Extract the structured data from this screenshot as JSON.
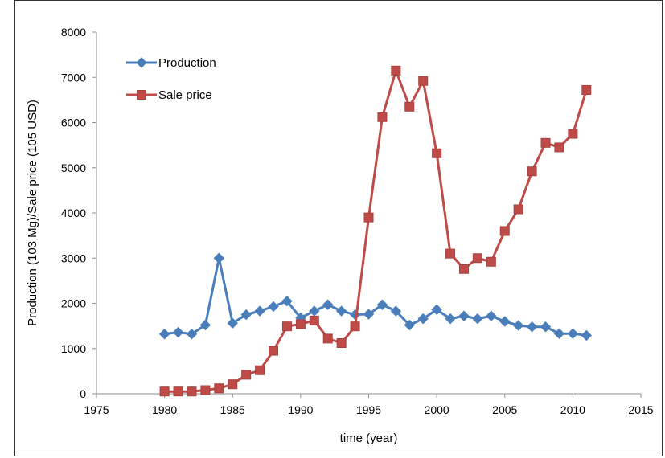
{
  "chart_data": {
    "type": "line",
    "xlabel": "time (year)",
    "ylabel": "Production (103 Mg)/Sale price (105 USD)",
    "xlim": [
      1975,
      2015
    ],
    "ylim": [
      0,
      8000
    ],
    "x_ticks": [
      1975,
      1980,
      1985,
      1990,
      1995,
      2000,
      2005,
      2010,
      2015
    ],
    "y_ticks": [
      0,
      1000,
      2000,
      3000,
      4000,
      5000,
      6000,
      7000,
      8000
    ],
    "legend_position": "top-left",
    "grid": false,
    "x": [
      1980,
      1981,
      1982,
      1983,
      1984,
      1985,
      1986,
      1987,
      1988,
      1989,
      1990,
      1991,
      1992,
      1993,
      1994,
      1995,
      1996,
      1997,
      1998,
      1999,
      2000,
      2001,
      2002,
      2003,
      2004,
      2005,
      2006,
      2007,
      2008,
      2009,
      2010,
      2011
    ],
    "series": [
      {
        "name": "Production",
        "color": "#4a7ebb",
        "marker": "diamond",
        "values": [
          1320,
          1360,
          1320,
          1520,
          3000,
          1560,
          1750,
          1830,
          1930,
          2050,
          1680,
          1830,
          1970,
          1830,
          1750,
          1760,
          1970,
          1830,
          1520,
          1660,
          1860,
          1660,
          1720,
          1660,
          1720,
          1600,
          1510,
          1480,
          1480,
          1330,
          1330,
          1290
        ]
      },
      {
        "name": "Sale price",
        "color": "#be4b48",
        "marker": "square",
        "values": [
          50,
          50,
          50,
          80,
          120,
          210,
          420,
          520,
          950,
          1490,
          1540,
          1620,
          1220,
          1120,
          1490,
          3900,
          6120,
          7150,
          6350,
          6920,
          5320,
          3100,
          2760,
          3000,
          2920,
          3600,
          4080,
          4920,
          5550,
          5450,
          5750,
          6720
        ]
      }
    ]
  }
}
